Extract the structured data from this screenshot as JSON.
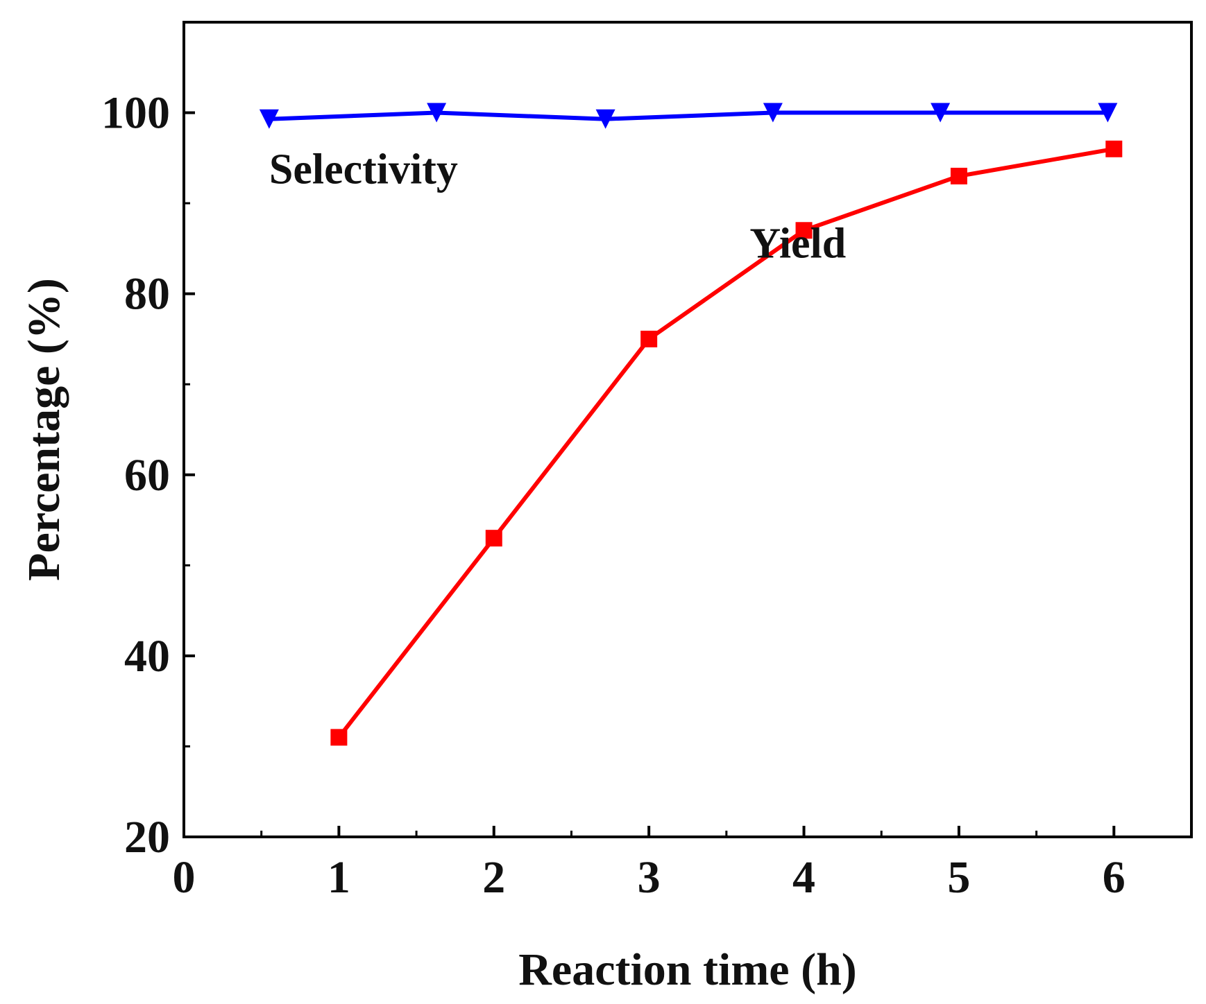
{
  "chart_data": {
    "type": "line",
    "title": "",
    "xlabel": "Reaction time (h)",
    "ylabel": "Percentage (%)",
    "xlim": [
      0,
      6.5
    ],
    "ylim": [
      20,
      110
    ],
    "x_ticks": [
      0,
      1,
      2,
      3,
      4,
      5,
      6
    ],
    "x_tick_labels": [
      "0",
      "1",
      "2",
      "3",
      "4",
      "5",
      "6"
    ],
    "y_ticks": [
      20,
      40,
      60,
      80,
      100
    ],
    "y_tick_labels": [
      "20",
      "40",
      "60",
      "80",
      "100"
    ],
    "y_minor_ticks": [
      30,
      50,
      70,
      90
    ],
    "grid": false,
    "legend": "none",
    "series": [
      {
        "name": "Selectivity",
        "label": "Selectivity",
        "color": "#0000ff",
        "marker": "triangle-down",
        "x": [
          0.55,
          1.63,
          2.72,
          3.8,
          4.88,
          5.96
        ],
        "values": [
          99.3,
          100.0,
          99.3,
          100.0,
          100.0,
          100.0
        ]
      },
      {
        "name": "Yield",
        "label": "Yield",
        "color": "#ff0000",
        "marker": "square",
        "x": [
          1,
          2,
          3,
          4,
          5,
          6
        ],
        "values": [
          31,
          53,
          75,
          87,
          93,
          96
        ]
      }
    ]
  }
}
